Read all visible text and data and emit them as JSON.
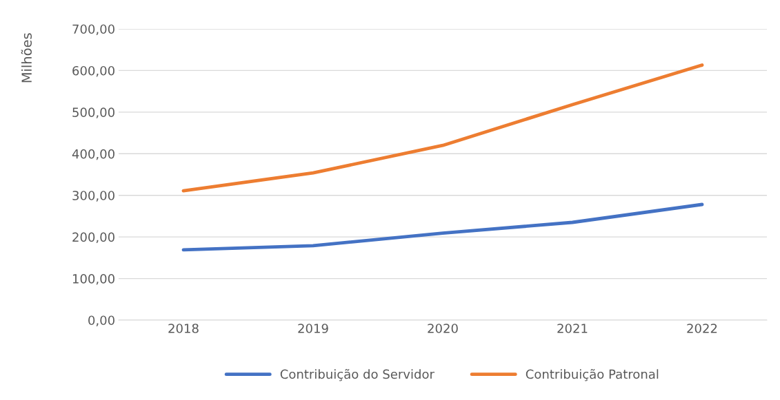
{
  "chart_data": {
    "type": "line",
    "ylabel": "Milhões",
    "categories": [
      "2018",
      "2019",
      "2020",
      "2021",
      "2022"
    ],
    "series": [
      {
        "name": "Contribuição do Servidor",
        "color": "#4472c4",
        "values": [
          169,
          179,
          209,
          235,
          278
        ]
      },
      {
        "name": "Contribuição Patronal",
        "color": "#ed7d31",
        "values": [
          311,
          354,
          420,
          518,
          613
        ]
      }
    ],
    "ylim": [
      0,
      700
    ],
    "yticks": [
      {
        "value": 0,
        "label": "0,00"
      },
      {
        "value": 100,
        "label": "100,00"
      },
      {
        "value": 200,
        "label": "200,00"
      },
      {
        "value": 300,
        "label": "300,00"
      },
      {
        "value": 400,
        "label": "400,00"
      },
      {
        "value": 500,
        "label": "500,00"
      },
      {
        "value": 600,
        "label": "600,00"
      },
      {
        "value": 700,
        "label": "700,00"
      }
    ],
    "grid": "y",
    "legend": "bottom",
    "marker": "none",
    "line_style": "solid"
  }
}
